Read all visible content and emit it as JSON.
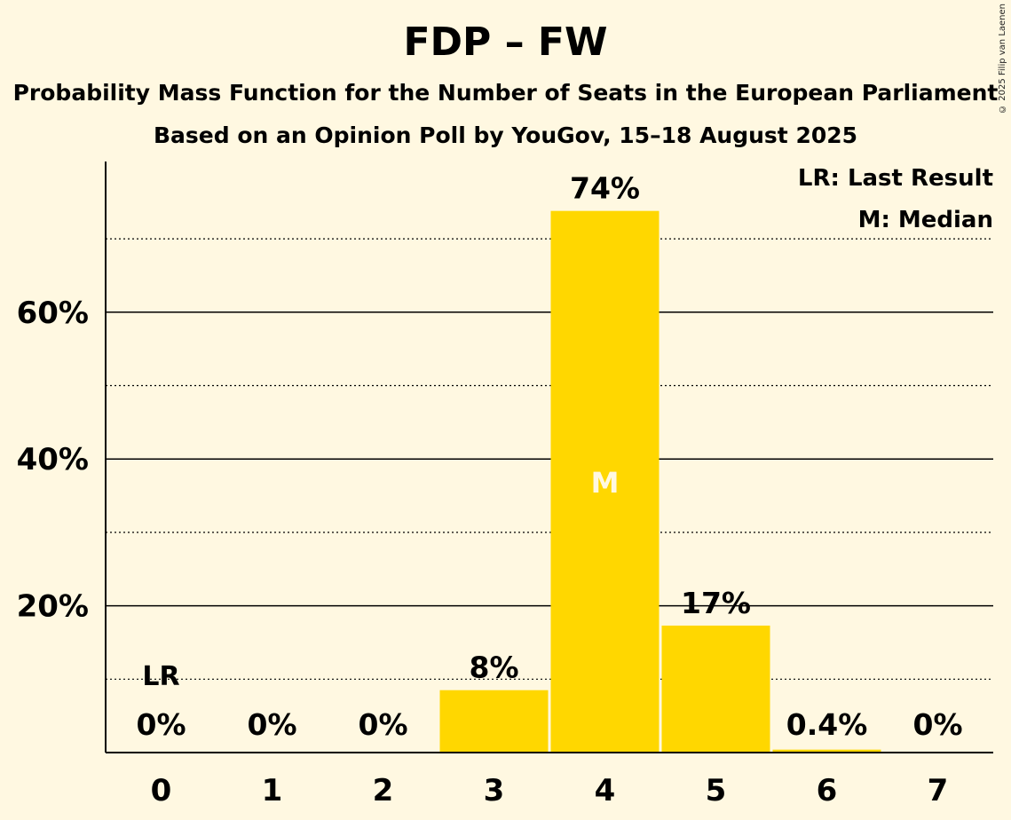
{
  "chart_data": {
    "type": "bar",
    "title": "FDP – FW",
    "subtitle": [
      "Probability Mass Function for the Number of Seats in the European Parliament",
      "Based on an Opinion Poll by YouGov, 15–18 August 2025"
    ],
    "copyright": "© 2025 Filip van Laenen",
    "legend": [
      "LR: Last Result",
      "M: Median"
    ],
    "legend_position": "top-right",
    "categories": [
      "0",
      "1",
      "2",
      "3",
      "4",
      "5",
      "6",
      "7"
    ],
    "values": [
      0,
      0,
      0,
      8.5,
      73.8,
      17.3,
      0.4,
      0
    ],
    "data_labels": [
      "0%",
      "0%",
      "0%",
      "8%",
      "74%",
      "17%",
      "0.4%",
      "0%"
    ],
    "y_ticks": [
      20,
      40,
      60
    ],
    "y_tick_labels": [
      "20%",
      "40%",
      "60%"
    ],
    "y_minor_gridlines": [
      10,
      30,
      50,
      70
    ],
    "ylim": [
      0,
      80
    ],
    "last_result_label": "LR",
    "last_result_category": "0",
    "median_label": "M",
    "median_category": "4",
    "bar_color": "#ffd700",
    "background_color": "#fff8e1"
  }
}
